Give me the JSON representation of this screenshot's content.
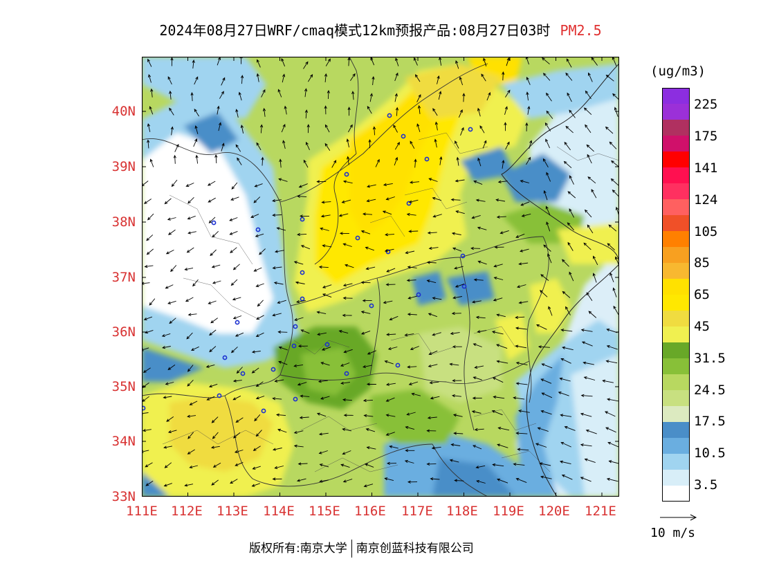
{
  "title": {
    "main": "2024年08月27日WRF/cmaq模式12km预报产品:08月27日03时",
    "pollutant": "PM2.5"
  },
  "map": {
    "lat_labels": [
      "40N",
      "39N",
      "38N",
      "37N",
      "36N",
      "35N",
      "34N",
      "33N"
    ],
    "lon_labels": [
      "111E",
      "112E",
      "113E",
      "114E",
      "115E",
      "116E",
      "117E",
      "118E",
      "119E",
      "120E",
      "121E"
    ]
  },
  "legend": {
    "unit": "(ug/m3)",
    "colors": [
      "#8c2ee0",
      "#9b30d8",
      "#b03060",
      "#d0106a",
      "#ff0000",
      "#ff1050",
      "#ff3060",
      "#ff6060",
      "#f05028",
      "#ff8000",
      "#f8a020",
      "#f8b830",
      "#ffe100",
      "#ffe800",
      "#f0dc40",
      "#f0f050",
      "#68a828",
      "#88c038",
      "#b8d860",
      "#c8e080",
      "#dceac0",
      "#4a8ec8",
      "#6aaee0",
      "#a0d4f0",
      "#d8eef8",
      "#ffffff"
    ],
    "labels": [
      "225",
      "175",
      "141",
      "124",
      "105",
      "85",
      "65",
      "45",
      "31.5",
      "24.5",
      "17.5",
      "10.5",
      "3.5"
    ]
  },
  "wind_scale": {
    "label": "10 m/s"
  },
  "footer": {
    "copyright": "版权所有:南京大学",
    "company": "南京创蓝科技有限公司"
  }
}
